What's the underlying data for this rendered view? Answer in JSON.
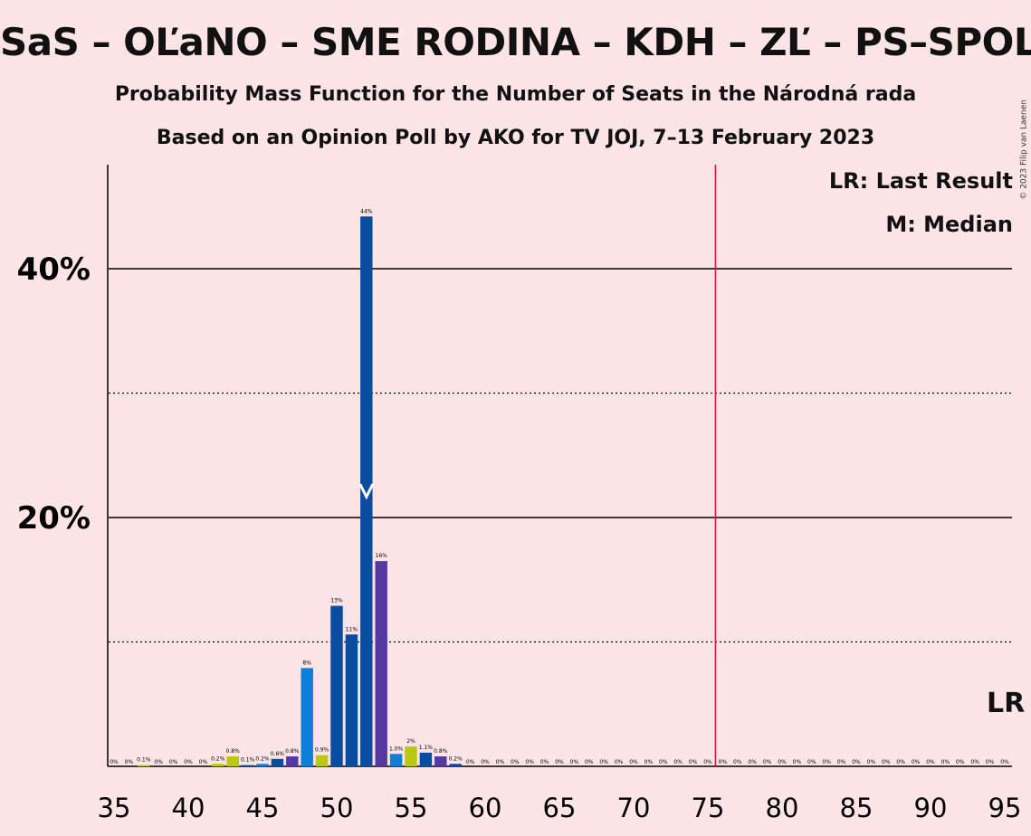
{
  "title": "SaS – OĽaNO – SME RODINA – KDH – ZĽ – PS–SPOLU",
  "subtitle1": "Probability Mass Function for the Number of Seats in the Národná rada",
  "subtitle2": "Based on an Opinion Poll by AKO for TV JOJ, 7–13 February 2023",
  "copyright": "© 2023 Filip van Laenen",
  "legend": {
    "last_result": "LR: Last Result",
    "median": "M: Median"
  },
  "lr_marker": "LR",
  "colors": {
    "background": "#fde4e6",
    "last_result_line": "#e0102a",
    "median_marker": "#ffffff"
  },
  "chart_data": {
    "type": "bar",
    "xlim": [
      35,
      95
    ],
    "ylim": [
      0,
      48
    ],
    "x_ticks": [
      35,
      40,
      45,
      50,
      55,
      60,
      65,
      70,
      75,
      80,
      85,
      90,
      95
    ],
    "y_ticks": [
      {
        "value": 20,
        "label": "20%"
      },
      {
        "value": 40,
        "label": "40%"
      }
    ],
    "grid": {
      "solid": [
        20,
        40
      ],
      "dotted": [
        10,
        30
      ]
    },
    "last_result": 76,
    "median": 52,
    "x": [
      35,
      36,
      37,
      38,
      39,
      40,
      41,
      42,
      43,
      44,
      45,
      46,
      47,
      48,
      49,
      50,
      51,
      52,
      53,
      54,
      55,
      56,
      57,
      58,
      59,
      60,
      61,
      62,
      63,
      64,
      65,
      66,
      67,
      68,
      69,
      70,
      71,
      72,
      73,
      74,
      75,
      76,
      77,
      78,
      79,
      80,
      81,
      82,
      83,
      84,
      85,
      86,
      87,
      88,
      89,
      90,
      91,
      92,
      93,
      94,
      95
    ],
    "values": [
      0,
      0,
      0.1,
      0,
      0,
      0,
      0,
      0.2,
      0.8,
      0.1,
      0.2,
      0.6,
      0.8,
      7.9,
      0.9,
      12.9,
      10.6,
      44.2,
      16.5,
      1.0,
      1.6,
      1.1,
      0.8,
      0.2,
      0,
      0,
      0,
      0,
      0,
      0,
      0,
      0,
      0,
      0,
      0,
      0,
      0,
      0,
      0,
      0,
      0,
      0,
      0,
      0,
      0,
      0,
      0,
      0,
      0,
      0,
      0,
      0,
      0,
      0,
      0,
      0,
      0,
      0,
      0,
      0,
      0
    ],
    "labels": [
      "0%",
      "0%",
      "0.1%",
      "0%",
      "0%",
      "0%",
      "0%",
      "0.2%",
      "0.8%",
      "0.1%",
      "0.2%",
      "0.6%",
      "0.8%",
      "8%",
      "0.9%",
      "13%",
      "11%",
      "44%",
      "16%",
      "1.0%",
      "2%",
      "1.1%",
      "0.8%",
      "0.2%",
      "0%",
      "0%",
      "0%",
      "0%",
      "0%",
      "0%",
      "0%",
      "0%",
      "0%",
      "0%",
      "0%",
      "0%",
      "0%",
      "0%",
      "0%",
      "0%",
      "0%",
      "0%",
      "0%",
      "0%",
      "0%",
      "0%",
      "0%",
      "0%",
      "0%",
      "0%",
      "0%",
      "0%",
      "0%",
      "0%",
      "0%",
      "0%",
      "0%",
      "0%",
      "0%",
      "0%",
      "0%"
    ],
    "colors": [
      "#0a4da0",
      "#5539a3",
      "#b8c90e",
      "#0a4da0",
      "#0d7fd8",
      "#0a4da0",
      "#5539a3",
      "#b8c90e",
      "#b8c90e",
      "#0a4da0",
      "#0d7fd8",
      "#0a4da0",
      "#5539a3",
      "#0d7fd8",
      "#b8c90e",
      "#0a4da0",
      "#0a4da0",
      "#0a4da0",
      "#5539a3",
      "#0d7fd8",
      "#b8c90e",
      "#0a4da0",
      "#5539a3",
      "#0a4da0",
      "#0d7fd8",
      "#0a4da0",
      "#5539a3",
      "#b8c90e",
      "#0a4da0",
      "#0d7fd8",
      "#0a4da0",
      "#5539a3",
      "#b8c90e",
      "#0a4da0",
      "#0d7fd8",
      "#0a4da0",
      "#5539a3",
      "#b8c90e",
      "#0a4da0",
      "#0d7fd8",
      "#0a4da0",
      "#5539a3",
      "#b8c90e",
      "#0a4da0",
      "#0d7fd8",
      "#0a4da0",
      "#5539a3",
      "#b8c90e",
      "#0a4da0",
      "#0d7fd8",
      "#0a4da0",
      "#5539a3",
      "#b8c90e",
      "#0a4da0",
      "#0d7fd8",
      "#0a4da0",
      "#5539a3",
      "#b8c90e",
      "#0a4da0",
      "#0d7fd8",
      "#0a4da0"
    ]
  }
}
